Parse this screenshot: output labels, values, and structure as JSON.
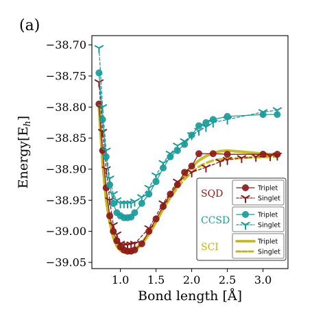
{
  "panel_label": "(a)",
  "colors": {
    "SQD": "#8b1a1a",
    "CCSD": "#1a9a9a",
    "SCI": "#c4b416"
  },
  "chart_data": {
    "type": "line",
    "xlabel": "Bond length [Å]",
    "ylabel": "Energy[E",
    "ylabel_sub": "h",
    "ylabel_close": "]",
    "xlim": [
      0.6,
      3.35
    ],
    "ylim": [
      -39.06,
      -38.685
    ],
    "x_ticks": [
      1.0,
      1.5,
      2.0,
      2.5,
      3.0
    ],
    "x_tick_labels": [
      "1.0",
      "1.5",
      "2.0",
      "2.5",
      "3.0"
    ],
    "y_ticks": [
      -38.7,
      -38.75,
      -38.8,
      -38.85,
      -38.9,
      -38.95,
      -39.0,
      -39.05
    ],
    "y_tick_labels": [
      "−38.70",
      "−38.75",
      "−38.80",
      "−38.85",
      "−38.90",
      "−38.95",
      "−39.00",
      "−39.05"
    ],
    "legend": {
      "groups": [
        {
          "method": "SQD",
          "color_key": "SQD",
          "entries": [
            {
              "label": "Triplet",
              "style": "solid-circle"
            },
            {
              "label": "Singlet",
              "style": "dashed-tri"
            }
          ]
        },
        {
          "method": "CCSD",
          "color_key": "CCSD",
          "entries": [
            {
              "label": "Triplet",
              "style": "solid-circle"
            },
            {
              "label": "Singlet",
              "style": "dashed-tri"
            }
          ]
        },
        {
          "method": "SCI",
          "color_key": "SCI",
          "entries": [
            {
              "label": "Triplet",
              "style": "solid-thick"
            },
            {
              "label": "Singlet",
              "style": "dashed-thick"
            }
          ]
        }
      ]
    },
    "series": [
      {
        "name": "SCI Triplet",
        "color_key": "SCI",
        "style": "solid-thick",
        "x": [
          0.7,
          0.75,
          0.8,
          0.85,
          0.9,
          0.95,
          1.0,
          1.05,
          1.1,
          1.15,
          1.2,
          1.3,
          1.4,
          1.5,
          1.6,
          1.7,
          1.8,
          1.9,
          2.0,
          2.1,
          2.2,
          2.3,
          2.4,
          2.5,
          2.7,
          2.9,
          3.1,
          3.2
        ],
        "y": [
          -38.8,
          -38.89,
          -38.95,
          -38.985,
          -39.01,
          -39.024,
          -39.031,
          -39.034,
          -39.035,
          -39.034,
          -39.031,
          -39.021,
          -39.005,
          -38.985,
          -38.964,
          -38.944,
          -38.925,
          -38.909,
          -38.896,
          -38.886,
          -38.879,
          -38.874,
          -38.871,
          -38.87,
          -38.872,
          -38.874,
          -38.876,
          -38.877
        ]
      },
      {
        "name": "SCI Singlet",
        "color_key": "SCI",
        "style": "dashed-thick",
        "x": [
          0.7,
          0.75,
          0.8,
          0.85,
          0.9,
          0.95,
          1.0,
          1.05,
          1.1,
          1.15,
          1.2,
          1.3,
          1.4,
          1.5,
          1.6,
          1.7,
          1.8,
          1.9,
          2.0,
          2.1,
          2.2,
          2.3,
          2.4,
          2.5,
          2.7,
          2.9,
          3.1,
          3.2
        ],
        "y": [
          -38.795,
          -38.887,
          -38.948,
          -38.985,
          -39.008,
          -39.022,
          -39.029,
          -39.032,
          -39.033,
          -39.032,
          -39.029,
          -39.018,
          -39.002,
          -38.984,
          -38.964,
          -38.946,
          -38.93,
          -38.916,
          -38.905,
          -38.896,
          -38.89,
          -38.886,
          -38.884,
          -38.883,
          -38.882,
          -38.881,
          -38.88,
          -38.88
        ]
      },
      {
        "name": "SQD Singlet",
        "color_key": "SQD",
        "style": "dashed-tri",
        "x": [
          0.7,
          0.75,
          0.8,
          0.85,
          0.9,
          0.95,
          1.0,
          1.05,
          1.1,
          1.15,
          1.2,
          1.4,
          1.6,
          1.8,
          2.0,
          2.2,
          2.4,
          2.5,
          2.7,
          2.9,
          3.1,
          3.2
        ],
        "y": [
          -38.76,
          -38.84,
          -38.9,
          -38.95,
          -38.99,
          -39.005,
          -39.02,
          -39.022,
          -39.022,
          -39.021,
          -39.02,
          -38.995,
          -38.955,
          -38.92,
          -38.905,
          -38.897,
          -38.888,
          -38.885,
          -38.882,
          -38.88,
          -38.879,
          -38.878
        ]
      },
      {
        "name": "SQD Triplet",
        "color_key": "SQD",
        "style": "solid-circle",
        "x": [
          0.7,
          0.75,
          0.8,
          0.85,
          0.9,
          0.95,
          1.0,
          1.05,
          1.1,
          1.15,
          1.2,
          1.3,
          1.4,
          1.5,
          1.6,
          1.7,
          1.8,
          1.9,
          2.0,
          2.1,
          2.3,
          2.5,
          3.0,
          3.2
        ],
        "y": [
          -38.795,
          -38.87,
          -38.93,
          -38.975,
          -39.0,
          -39.015,
          -39.025,
          -39.03,
          -39.032,
          -39.032,
          -39.03,
          -39.02,
          -39.0,
          -38.98,
          -38.96,
          -38.94,
          -38.925,
          -38.905,
          -38.895,
          -38.875,
          -38.875,
          -38.876,
          -38.876,
          -38.876
        ]
      },
      {
        "name": "CCSD Singlet",
        "color_key": "CCSD",
        "style": "dashed-tri",
        "x": [
          0.7,
          0.75,
          0.8,
          0.85,
          0.9,
          0.95,
          1.0,
          1.05,
          1.1,
          1.15,
          1.2,
          1.3,
          1.4,
          1.5,
          1.6,
          1.7,
          1.8,
          1.9,
          2.0,
          2.1,
          2.2,
          2.3,
          2.5,
          3.0,
          3.2
        ],
        "y": [
          -38.705,
          -38.8,
          -38.87,
          -38.915,
          -38.94,
          -38.95,
          -38.955,
          -38.955,
          -38.955,
          -38.955,
          -38.952,
          -38.945,
          -38.93,
          -38.91,
          -38.89,
          -38.875,
          -38.862,
          -38.855,
          -38.845,
          -38.838,
          -38.832,
          -38.825,
          -38.82,
          -38.808,
          -38.805
        ]
      },
      {
        "name": "CCSD Triplet",
        "color_key": "CCSD",
        "style": "solid-circle",
        "x": [
          0.7,
          0.75,
          0.8,
          0.85,
          0.9,
          0.95,
          1.0,
          1.05,
          1.1,
          1.15,
          1.2,
          1.3,
          1.4,
          1.5,
          1.6,
          1.7,
          1.8,
          1.9,
          2.0,
          2.1,
          2.2,
          2.3,
          2.5,
          3.0,
          3.2
        ],
        "y": [
          -38.745,
          -38.82,
          -38.88,
          -38.925,
          -38.955,
          -38.97,
          -38.975,
          -38.978,
          -38.978,
          -38.977,
          -38.97,
          -38.955,
          -38.94,
          -38.92,
          -38.898,
          -38.88,
          -38.87,
          -38.86,
          -38.845,
          -38.83,
          -38.825,
          -38.82,
          -38.815,
          -38.812,
          -38.812
        ]
      }
    ]
  }
}
